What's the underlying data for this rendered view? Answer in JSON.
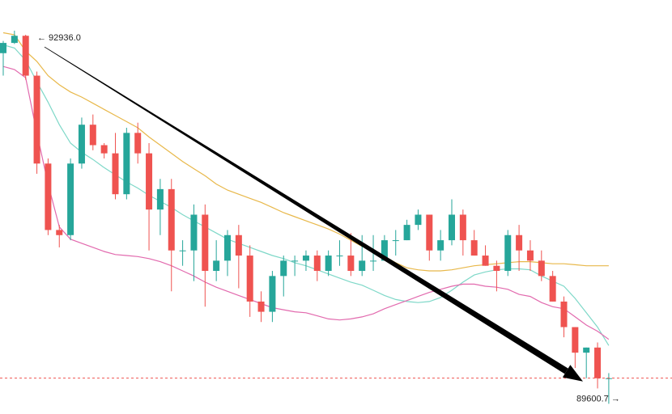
{
  "chart_data": {
    "type": "candlestick",
    "y_range": [
      89250,
      93300
    ],
    "grid": false,
    "series": [
      {
        "kind": "band",
        "values": [
          92980,
          92960,
          92800,
          92700,
          92560,
          92470,
          92400,
          92350,
          92290,
          92230,
          92170,
          92110,
          92050,
          91960,
          91880,
          91800,
          91720,
          91650,
          91580,
          91500,
          91440,
          91400,
          91360,
          91320,
          91270,
          91220,
          91180,
          91140,
          91100,
          91060,
          91010,
          90950,
          90890,
          90850,
          90790,
          90730,
          90680,
          90660,
          90650,
          90650,
          90660,
          90680,
          90700,
          90710,
          90720,
          90730,
          90740,
          90740,
          90730,
          90720,
          90720,
          90710,
          90700,
          90700,
          90700
        ]
      },
      {
        "kind": "band",
        "values": [
          92860,
          92830,
          92710,
          92500,
          92300,
          92080,
          91900,
          91810,
          91740,
          91660,
          91590,
          91520,
          91460,
          91390,
          91330,
          91270,
          91200,
          91140,
          91080,
          91020,
          90960,
          90920,
          90880,
          90840,
          90800,
          90770,
          90730,
          90700,
          90660,
          90620,
          90580,
          90540,
          90510,
          90460,
          90410,
          90370,
          90350,
          90340,
          90350,
          90390,
          90460,
          90540,
          90610,
          90640,
          90660,
          90670,
          90670,
          90660,
          90600,
          90550,
          90500,
          90380,
          90240,
          90100,
          89920
        ]
      },
      {
        "kind": "band",
        "values": [
          92650,
          92620,
          92540,
          92000,
          91500,
          91080,
          90960,
          90920,
          90880,
          90840,
          90810,
          90800,
          90790,
          90770,
          90740,
          90700,
          90650,
          90600,
          90540,
          90490,
          90450,
          90410,
          90370,
          90330,
          90290,
          90270,
          90250,
          90240,
          90210,
          90180,
          90170,
          90180,
          90200,
          90230,
          90280,
          90320,
          90360,
          90400,
          90440,
          90470,
          90500,
          90520,
          90520,
          90500,
          90490,
          90470,
          90420,
          90400,
          90340,
          90300,
          90280,
          90200,
          90120,
          90060,
          89980
        ]
      },
      {
        "kind": "candles",
        "values": [
          [
            92780,
            92880,
            92900,
            92560
          ],
          [
            92880,
            92950,
            93000,
            92870
          ],
          [
            92950,
            92560,
            92960,
            92520
          ],
          [
            92560,
            91700,
            92600,
            91600
          ],
          [
            91700,
            91050,
            91750,
            91000
          ],
          [
            91050,
            91000,
            91100,
            90880
          ],
          [
            91000,
            91700,
            91750,
            90950
          ],
          [
            91700,
            92080,
            92150,
            91650
          ],
          [
            92080,
            91880,
            92180,
            91830
          ],
          [
            91880,
            91800,
            91900,
            91750
          ],
          [
            91800,
            91400,
            92000,
            91350
          ],
          [
            91400,
            92000,
            92050,
            91350
          ],
          [
            92000,
            91800,
            92100,
            91700
          ],
          [
            91800,
            91250,
            91900,
            90850
          ],
          [
            91250,
            91450,
            91550,
            91000
          ],
          [
            91450,
            90850,
            91550,
            90450
          ],
          [
            90850,
            90850,
            90950,
            90700
          ],
          [
            90850,
            91200,
            91300,
            90550
          ],
          [
            91200,
            90650,
            91300,
            90300
          ],
          [
            90650,
            90750,
            90950,
            90550
          ],
          [
            90750,
            91000,
            91050,
            90600
          ],
          [
            91000,
            90800,
            91100,
            90480
          ],
          [
            90800,
            90350,
            90900,
            90200
          ],
          [
            90350,
            90250,
            90450,
            90150
          ],
          [
            90250,
            90600,
            90650,
            90150
          ],
          [
            90600,
            90750,
            90800,
            90400
          ],
          [
            90750,
            90750,
            90800,
            90600
          ],
          [
            90750,
            90800,
            90850,
            90650
          ],
          [
            90800,
            90650,
            90850,
            90550
          ],
          [
            90650,
            90800,
            90850,
            90600
          ],
          [
            90800,
            90800,
            90950,
            90700
          ],
          [
            90800,
            90650,
            91020,
            90600
          ],
          [
            90650,
            90750,
            91000,
            90600
          ],
          [
            90750,
            90750,
            91000,
            90650
          ],
          [
            90750,
            90950,
            91000,
            90750
          ],
          [
            90950,
            90950,
            91050,
            90800
          ],
          [
            90950,
            91100,
            91150,
            90950
          ],
          [
            91100,
            91200,
            91250,
            91050
          ],
          [
            91200,
            90850,
            91200,
            90750
          ],
          [
            90850,
            90950,
            91050,
            90750
          ],
          [
            90950,
            91200,
            91350,
            90900
          ],
          [
            91200,
            90950,
            91250,
            90800
          ],
          [
            90950,
            90800,
            91050,
            90800
          ],
          [
            90800,
            90700,
            90900,
            90700
          ],
          [
            90700,
            90650,
            90750,
            90450
          ],
          [
            90650,
            91000,
            91050,
            90600
          ],
          [
            91000,
            90850,
            91100,
            90650
          ],
          [
            90850,
            90750,
            90950,
            90650
          ],
          [
            90750,
            90600,
            90850,
            90550
          ],
          [
            90600,
            90350,
            90650,
            90350
          ],
          [
            90350,
            90100,
            90400,
            90000
          ],
          [
            90100,
            89850,
            90100,
            89700
          ],
          [
            89850,
            89900,
            89900,
            89600
          ],
          [
            89900,
            89600,
            89950,
            89500
          ],
          [
            89600,
            89600,
            89650,
            89350
          ]
        ]
      },
      {
        "kind": "trend",
        "values": [
          92936.0,
          89600.7
        ]
      }
    ],
    "annotations": [
      {
        "label": "← 92936.0",
        "value": 92936.0
      },
      {
        "label": "89600.7 →",
        "value": 89600.7
      }
    ],
    "current_price": 89600.7,
    "colors": {
      "up": "#26a69a",
      "down": "#ef5350",
      "upper_band": "#e8b84a",
      "middle_band": "#7ed8c8",
      "lower_band": "#e26aae",
      "trend": "#000000",
      "price_line": "#ef5350"
    }
  }
}
